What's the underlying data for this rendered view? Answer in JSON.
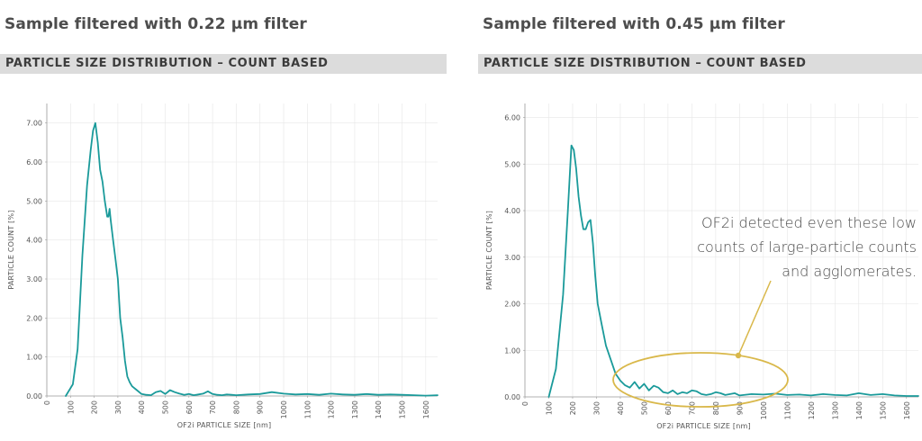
{
  "panels": [
    {
      "heading": "Sample filtered with 0.22 µm filter",
      "subheading": "PARTICLE SIZE DISTRIBUTION – COUNT BASED"
    },
    {
      "heading": "Sample filtered with 0.45 µm filter",
      "subheading": "PARTICLE SIZE DISTRIBUTION – COUNT BASED"
    }
  ],
  "annotation": {
    "lines": [
      "OF2i detected even these low",
      "counts of large-particle counts",
      "and agglomerates."
    ]
  },
  "colors": {
    "line": "#1a9a9a",
    "highlight": "#d9b84a",
    "grid": "#e6e6e6",
    "axis": "#999999"
  },
  "chart_data": [
    {
      "type": "line",
      "xlabel": "OF2i PARTICLE SIZE [nm]",
      "ylabel": "PARTICLE COUNT [%]",
      "xlim": [
        0,
        1650
      ],
      "ylim": [
        0,
        7.5
      ],
      "xticks": [
        "0",
        "100",
        "200",
        "300",
        "400",
        "500",
        "600",
        "700",
        "800",
        "900",
        "1000",
        "1100",
        "1200",
        "1300",
        "1400",
        "1500",
        "1600"
      ],
      "yticks": [
        "0.00",
        "1.00",
        "2.00",
        "3.00",
        "4.00",
        "5.00",
        "6.00",
        "7.00"
      ],
      "x": [
        80,
        110,
        130,
        150,
        170,
        185,
        195,
        205,
        215,
        225,
        235,
        245,
        255,
        260,
        265,
        270,
        280,
        290,
        300,
        310,
        320,
        330,
        340,
        350,
        360,
        380,
        400,
        420,
        440,
        460,
        480,
        500,
        520,
        540,
        560,
        580,
        600,
        620,
        640,
        660,
        680,
        700,
        720,
        740,
        760,
        780,
        800,
        850,
        900,
        950,
        1000,
        1050,
        1100,
        1150,
        1200,
        1250,
        1300,
        1350,
        1400,
        1450,
        1500,
        1550,
        1600,
        1650
      ],
      "values": [
        0,
        0.3,
        1.2,
        3.6,
        5.4,
        6.3,
        6.8,
        7.0,
        6.5,
        5.8,
        5.5,
        5.0,
        4.6,
        4.6,
        4.8,
        4.5,
        4.0,
        3.5,
        3.0,
        2.0,
        1.5,
        0.9,
        0.5,
        0.35,
        0.25,
        0.15,
        0.05,
        0.03,
        0.02,
        0.1,
        0.13,
        0.05,
        0.15,
        0.1,
        0.06,
        0.03,
        0.05,
        0.02,
        0.04,
        0.06,
        0.12,
        0.05,
        0.03,
        0.02,
        0.04,
        0.03,
        0.02,
        0.04,
        0.05,
        0.1,
        0.06,
        0.04,
        0.05,
        0.03,
        0.06,
        0.04,
        0.03,
        0.05,
        0.03,
        0.04,
        0.03,
        0.02,
        0.01,
        0.02
      ]
    },
    {
      "type": "line",
      "xlabel": "OF2i PARTICLE SIZE [nm]",
      "ylabel": "PARTICLE COUNT [%]",
      "xlim": [
        0,
        1650
      ],
      "ylim": [
        0,
        6.3
      ],
      "xticks": [
        "0",
        "100",
        "200",
        "300",
        "400",
        "500",
        "600",
        "700",
        "800",
        "900",
        "1000",
        "1100",
        "1200",
        "1300",
        "1400",
        "1500",
        "1600"
      ],
      "yticks": [
        "0.00",
        "1.00",
        "2.00",
        "3.00",
        "4.00",
        "5.00",
        "6.00"
      ],
      "x": [
        100,
        130,
        160,
        180,
        195,
        205,
        215,
        225,
        235,
        245,
        255,
        265,
        275,
        285,
        295,
        305,
        320,
        340,
        360,
        380,
        400,
        420,
        440,
        460,
        480,
        500,
        520,
        540,
        560,
        580,
        600,
        620,
        640,
        660,
        680,
        700,
        720,
        740,
        760,
        780,
        800,
        820,
        840,
        860,
        880,
        900,
        950,
        1000,
        1050,
        1100,
        1150,
        1200,
        1250,
        1300,
        1350,
        1400,
        1450,
        1500,
        1550,
        1600,
        1650
      ],
      "values": [
        0,
        0.6,
        2.2,
        4.0,
        5.4,
        5.3,
        4.9,
        4.3,
        3.9,
        3.6,
        3.6,
        3.75,
        3.8,
        3.3,
        2.6,
        2.0,
        1.6,
        1.1,
        0.8,
        0.5,
        0.35,
        0.25,
        0.2,
        0.32,
        0.18,
        0.28,
        0.14,
        0.24,
        0.2,
        0.1,
        0.08,
        0.14,
        0.06,
        0.1,
        0.08,
        0.14,
        0.12,
        0.06,
        0.04,
        0.06,
        0.1,
        0.08,
        0.04,
        0.06,
        0.08,
        0.03,
        0.06,
        0.05,
        0.07,
        0.04,
        0.05,
        0.03,
        0.06,
        0.04,
        0.03,
        0.08,
        0.04,
        0.06,
        0.03,
        0.02,
        0.02
      ]
    }
  ]
}
